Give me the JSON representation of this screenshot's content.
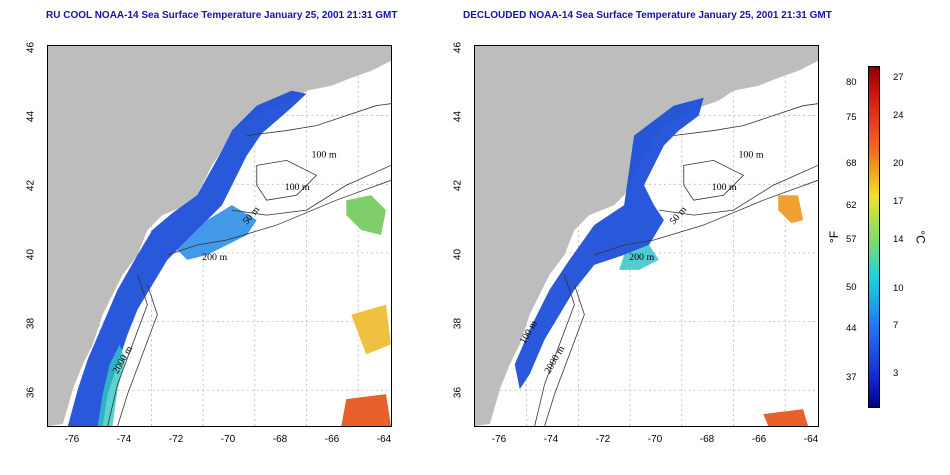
{
  "panels": [
    {
      "title": "RU COOL NOAA-14 Sea Surface Temperature January 25, 2001 21:31 GMT",
      "contour_labels": [
        "100 m",
        "100 m",
        "50 m",
        "200 m",
        "2000 m"
      ]
    },
    {
      "title": "DECLOUDED NOAA-14 Sea Surface Temperature January 25, 2001 21:31 GMT",
      "contour_labels": [
        "100 m",
        "100 m",
        "50 m",
        "200 m",
        "2000 m",
        "100 m"
      ]
    }
  ],
  "axes": {
    "lat_ticks": [
      "46",
      "44",
      "42",
      "40",
      "38",
      "36"
    ],
    "lon_ticks": [
      "-76",
      "-74",
      "-72",
      "-70",
      "-68",
      "-66",
      "-64"
    ]
  },
  "colorbar": {
    "unit_f": "°F",
    "unit_c": "°C",
    "f_ticks": [
      "80",
      "75",
      "68",
      "62",
      "57",
      "50",
      "44",
      "37"
    ],
    "c_ticks": [
      "27",
      "24",
      "20",
      "17",
      "14",
      "10",
      "7",
      "3"
    ]
  },
  "colors": {
    "land": "#bdbdbd",
    "title": "#1414a8",
    "cold": "#1a3cd8",
    "warm": "#e05010"
  }
}
